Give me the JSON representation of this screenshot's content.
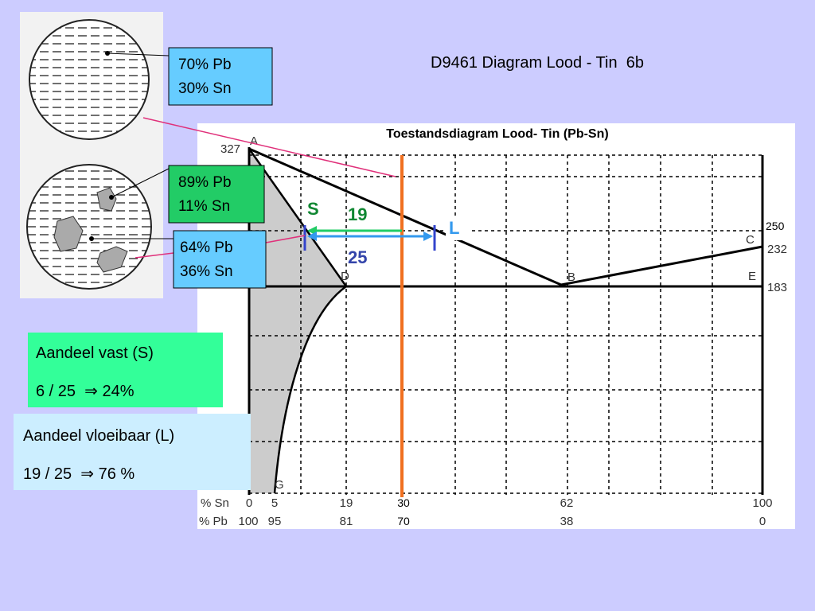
{
  "title": "D9461 Diagram Lood - Tin  6b",
  "callouts": [
    {
      "lines": [
        "70% Pb",
        "30% Sn"
      ]
    },
    {
      "lines": [
        "89% Pb",
        "11% Sn"
      ]
    },
    {
      "lines": [
        "64% Pb",
        "36% Sn"
      ]
    }
  ],
  "boxes": [
    {
      "heading": "Aandeel vast (S)",
      "formula": "6 / 25  ⇒ 24%"
    },
    {
      "heading": "Aandeel vloeibaar (L)",
      "formula": "19 / 25  ⇒ 76 %"
    }
  ],
  "diagram": {
    "title": "Toestandsdiagram Lood- Tin (Pb-Sn)",
    "temperatures": [
      "327",
      "250",
      "232",
      "183"
    ],
    "points": [
      "A",
      "B",
      "C",
      "D",
      "E",
      "G"
    ],
    "labels": {
      "solid": "S",
      "liquid": "L",
      "short": "19",
      "long": "25"
    },
    "axis": {
      "sn_label": "% Sn",
      "pb_label": "% Pb",
      "sn": [
        "0",
        "5",
        "19",
        "30",
        "62",
        "100"
      ],
      "pb": [
        "100",
        "95",
        "81",
        "70",
        "38",
        "0"
      ]
    }
  }
}
